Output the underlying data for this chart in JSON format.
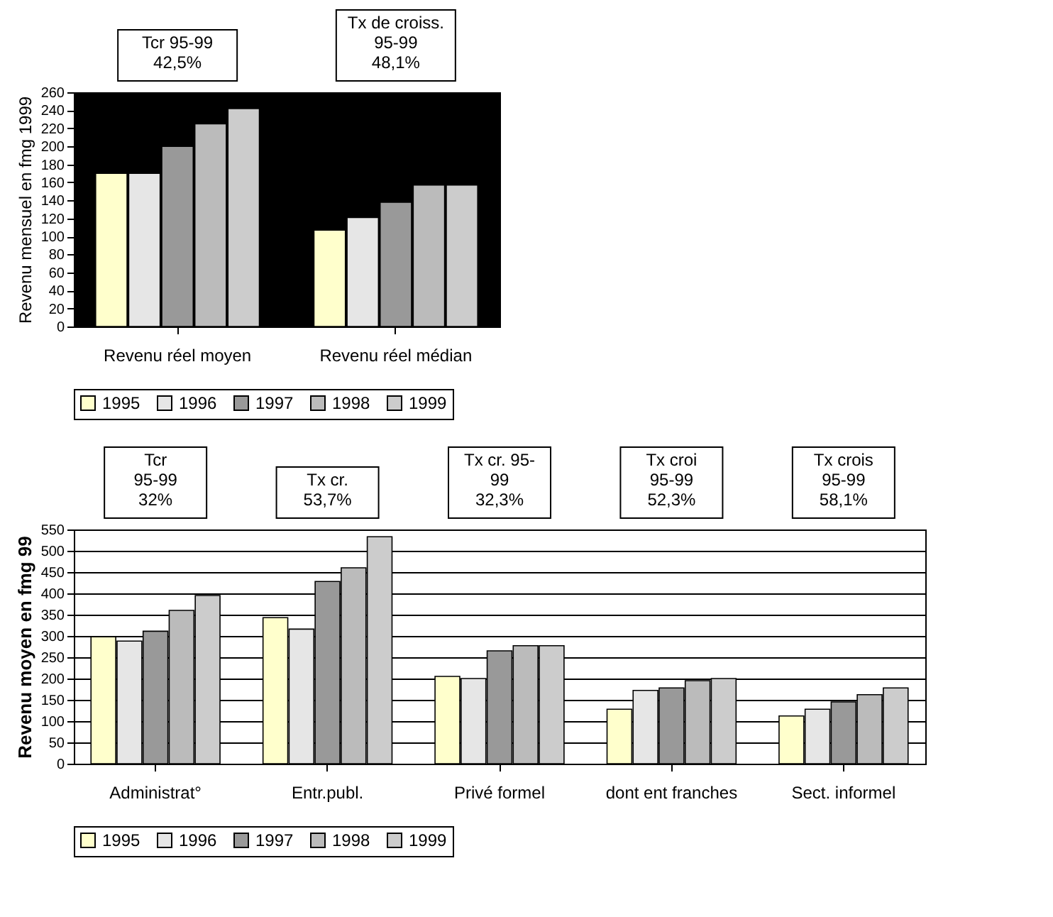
{
  "chart_data": [
    {
      "type": "bar",
      "ylabel": "Revenu mensuel en fmg 1999",
      "categories": [
        "Revenu réel moyen",
        "Revenu réel médian"
      ],
      "series": [
        {
          "name": "1995",
          "color": "#ffffcc",
          "values": [
            170,
            107
          ]
        },
        {
          "name": "1996",
          "color": "#e6e6e6",
          "values": [
            170,
            121
          ]
        },
        {
          "name": "1997",
          "color": "#999999",
          "values": [
            200,
            138
          ]
        },
        {
          "name": "1998",
          "color": "#bbbbbb",
          "values": [
            225,
            157
          ]
        },
        {
          "name": "1999",
          "color": "#cccccc",
          "values": [
            242,
            157
          ]
        }
      ],
      "ylim": [
        0,
        260
      ],
      "yticks": [
        0,
        20,
        40,
        60,
        80,
        100,
        120,
        140,
        160,
        180,
        200,
        220,
        240,
        260
      ],
      "grid": false,
      "legend": "bottom",
      "annotations": [
        "Tcr 95-99\n42,5%",
        "Tx de croiss.\n95-99\n48,1%"
      ]
    },
    {
      "type": "bar",
      "ylabel": "Revenu moyen en fmg 99",
      "categories": [
        "Administrat°",
        "Entr.publ.",
        "Privé formel",
        "dont ent franches",
        "Sect. informel"
      ],
      "series": [
        {
          "name": "1995",
          "color": "#ffffcc",
          "values": [
            298,
            343,
            205,
            128,
            112
          ]
        },
        {
          "name": "1996",
          "color": "#e6e6e6",
          "values": [
            288,
            316,
            200,
            172,
            128
          ]
        },
        {
          "name": "1997",
          "color": "#999999",
          "values": [
            311,
            428,
            265,
            178,
            145
          ]
        },
        {
          "name": "1998",
          "color": "#bbbbbb",
          "values": [
            360,
            460,
            277,
            195,
            162
          ]
        },
        {
          "name": "1999",
          "color": "#cccccc",
          "values": [
            395,
            533,
            277,
            200,
            178
          ]
        }
      ],
      "ylim": [
        0,
        550
      ],
      "yticks": [
        0,
        50,
        100,
        150,
        200,
        250,
        300,
        350,
        400,
        450,
        500,
        550
      ],
      "grid": "y",
      "legend": "bottom",
      "annotations": [
        "Tcr\n95-99\n32%",
        "Tx cr.\n53,7%",
        "Tx cr. 95-\n99\n32,3%",
        "Tx croi\n95-99\n52,3%",
        "Tx crois\n95-99\n58,1%"
      ]
    }
  ]
}
